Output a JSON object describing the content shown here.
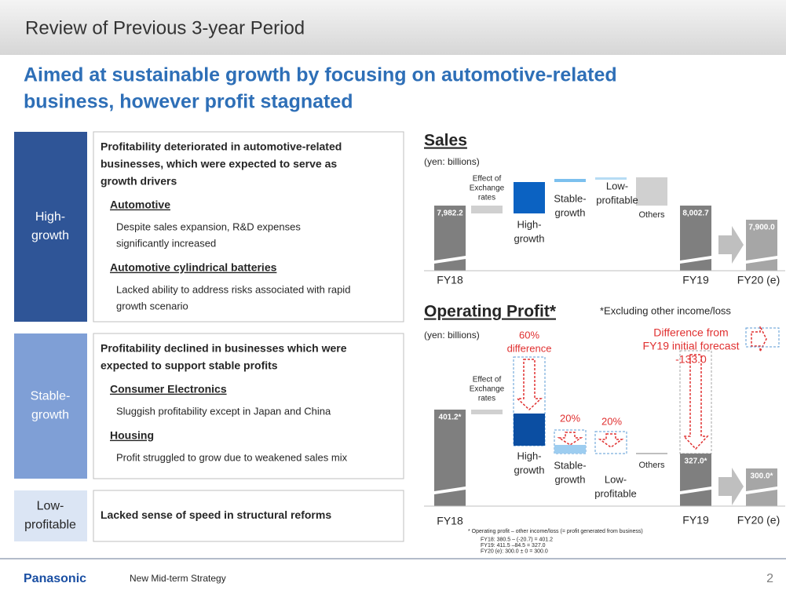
{
  "header": {
    "title": "Review of Previous 3-year Period"
  },
  "headline": [
    "Aimed at sustainable growth by focusing on automotive-related",
    "business, however profit stagnated"
  ],
  "sections": [
    {
      "label": [
        "High-",
        "growth"
      ],
      "summary": [
        "Profitability deteriorated in automotive-related",
        "businesses, which were expected to serve as",
        "growth drivers"
      ],
      "items": [
        {
          "heading": "Automotive",
          "text": [
            "Despite sales expansion, R&D expenses",
            "significantly increased"
          ]
        },
        {
          "heading": "Automotive cylindrical batteries",
          "text": [
            "Lacked ability to address risks associated with rapid",
            "growth scenario"
          ]
        }
      ]
    },
    {
      "label": [
        "Stable-",
        "growth"
      ],
      "summary": [
        "Profitability declined in businesses which were",
        "expected to support stable profits"
      ],
      "items": [
        {
          "heading": "Consumer Electronics",
          "text": [
            "Sluggish profitability except in Japan and China"
          ]
        },
        {
          "heading": "Housing",
          "text": [
            "Profit struggled to grow due to weakened sales mix"
          ]
        }
      ]
    },
    {
      "label": [
        "Low-",
        "profitable"
      ],
      "summary": [
        "Lacked sense of speed in structural reforms"
      ],
      "items": []
    }
  ],
  "sales": {
    "title": "Sales",
    "unit": "(yen: billions)",
    "exchange": [
      "Effect of",
      "Exchange",
      "rates"
    ],
    "high_growth": [
      "High-",
      "growth"
    ],
    "stable_growth": [
      "Stable-",
      "growth"
    ],
    "low_profitable": [
      "Low-",
      "profitable"
    ],
    "others": "Others",
    "fy18": "FY18",
    "fy19": "FY19",
    "fy20": "FY20 (e)",
    "fy18_value": "7,982.2",
    "fy19_value": "8,002.7",
    "fy20_value": "7,900.0"
  },
  "profit": {
    "title": "Operating Profit*",
    "note": "*Excluding other income/loss",
    "unit": "(yen: billions)",
    "exchange": [
      "Effect of",
      "Exchange",
      "rates"
    ],
    "high_growth": [
      "High-",
      "growth"
    ],
    "stable_growth": [
      "Stable-",
      "growth"
    ],
    "low_profitable": [
      "Low-",
      "profitable"
    ],
    "others": "Others",
    "diff_high": [
      "60%",
      "difference"
    ],
    "diff_stable": "20%",
    "diff_low": "20%",
    "diff_fy19": [
      "Difference from",
      "FY19 initial forecast",
      "-133.0"
    ],
    "fy18": "FY18",
    "fy19": "FY19",
    "fy20": "FY20 (e)",
    "fy18_value": "401.2*",
    "fy19_value": "327.0*",
    "fy20_value": "300.0*",
    "footnotes": [
      "* Operating profit – other income/loss (= profit generated from business)",
      "FY18:     380.5 – (-20.7) = 401.2",
      "FY19:     411.5 –84.5 = 327.0",
      "FY20 (e): 300.0 ± 0 = 300.0"
    ]
  },
  "footer": {
    "brand": "Panasonic",
    "text": "New Mid-term Strategy",
    "page": "2"
  }
}
